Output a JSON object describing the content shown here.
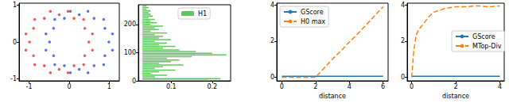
{
  "chart_data": [
    {
      "type": "scatter",
      "series": [
        {
          "color": "#e8312f",
          "values": [
            [
              0.49,
              0
            ],
            [
              0.58,
              0.22
            ],
            [
              0.39,
              0.37
            ],
            [
              0.36,
              0.61
            ],
            [
              0.12,
              0.64
            ],
            [
              -0.03,
              0.83
            ],
            [
              -0.25,
              0.74
            ],
            [
              -0.47,
              0.83
            ],
            [
              -0.62,
              0.64
            ],
            [
              -0.86,
              0.61
            ],
            [
              -0.89,
              0.37
            ],
            [
              -1.08,
              0.22
            ],
            [
              -0.99,
              0
            ],
            [
              -1.08,
              -0.22
            ],
            [
              -0.89,
              -0.37
            ],
            [
              -0.86,
              -0.61
            ],
            [
              -0.62,
              -0.64
            ],
            [
              -0.47,
              -0.83
            ],
            [
              -0.25,
              -0.74
            ],
            [
              -0.03,
              -0.83
            ],
            [
              0.12,
              -0.64
            ],
            [
              0.36,
              -0.61
            ],
            [
              0.39,
              -0.37
            ],
            [
              0.58,
              -0.22
            ]
          ]
        },
        {
          "color": "#2f4fe0",
          "values": [
            [
              -0.49,
              0
            ],
            [
              -0.58,
              0.22
            ],
            [
              -0.39,
              0.37
            ],
            [
              -0.36,
              0.61
            ],
            [
              -0.12,
              0.64
            ],
            [
              0.03,
              0.83
            ],
            [
              0.25,
              0.74
            ],
            [
              0.47,
              0.83
            ],
            [
              0.62,
              0.64
            ],
            [
              0.86,
              0.61
            ],
            [
              0.89,
              0.37
            ],
            [
              1.08,
              0.22
            ],
            [
              0.99,
              0
            ],
            [
              1.08,
              -0.22
            ],
            [
              0.89,
              -0.37
            ],
            [
              0.86,
              -0.61
            ],
            [
              0.62,
              -0.64
            ],
            [
              0.47,
              -0.83
            ],
            [
              0.25,
              -0.74
            ],
            [
              0.03,
              -0.83
            ],
            [
              -0.12,
              -0.64
            ],
            [
              -0.36,
              -0.61
            ],
            [
              -0.39,
              -0.37
            ],
            [
              -0.58,
              -0.22
            ]
          ]
        }
      ],
      "marker": "circle",
      "xlim": [
        -1.25,
        1.25
      ],
      "xticks": [
        -1,
        0,
        1
      ],
      "ylim": [
        -1.05,
        1.05
      ],
      "yticks": [
        -1,
        0,
        1
      ]
    },
    {
      "type": "barcode",
      "series": [
        {
          "name": "H1",
          "color": "#5cc85c",
          "y": [
            2,
            8,
            14,
            20,
            26,
            32,
            38,
            44,
            50,
            56,
            62,
            68,
            74,
            80,
            86,
            92,
            98,
            104,
            110,
            116,
            122,
            128,
            134,
            140,
            146,
            152,
            158,
            164,
            170,
            176,
            182,
            188,
            194,
            200,
            206,
            212,
            218,
            224,
            230,
            236,
            242,
            248,
            254,
            260,
            266
          ],
          "values": [
            [
              0.03,
              0.19
            ],
            [
              0.03,
              0.22
            ],
            [
              0.03,
              0.06
            ],
            [
              0.03,
              0.09
            ],
            [
              0.03,
              0.05
            ],
            [
              0.03,
              0.07
            ],
            [
              0.03,
              0.11
            ],
            [
              0.03,
              0.06
            ],
            [
              0.03,
              0.08
            ],
            [
              0.03,
              0.13
            ],
            [
              0.03,
              0.07
            ],
            [
              0.03,
              0.1
            ],
            [
              0.03,
              0.12
            ],
            [
              0.03,
              0.09
            ],
            [
              0.03,
              0.15
            ],
            [
              0.03,
              0.235
            ],
            [
              0.03,
              0.2
            ],
            [
              0.03,
              0.16
            ],
            [
              0.03,
              0.12
            ],
            [
              0.03,
              0.08
            ],
            [
              0.03,
              0.11
            ],
            [
              0.03,
              0.07
            ],
            [
              0.03,
              0.09
            ],
            [
              0.03,
              0.06
            ],
            [
              0.03,
              0.1
            ],
            [
              0.03,
              0.07
            ],
            [
              0.03,
              0.08
            ],
            [
              0.03,
              0.06
            ],
            [
              0.03,
              0.09
            ],
            [
              0.03,
              0.05
            ],
            [
              0.03,
              0.07
            ],
            [
              0.03,
              0.06
            ],
            [
              0.03,
              0.08
            ],
            [
              0.03,
              0.05
            ],
            [
              0.03,
              0.065
            ],
            [
              0.03,
              0.05
            ],
            [
              0.03,
              0.06
            ],
            [
              0.03,
              0.045
            ],
            [
              0.03,
              0.055
            ],
            [
              0.03,
              0.05
            ],
            [
              0.03,
              0.045
            ],
            [
              0.03,
              0.05
            ],
            [
              0.03,
              0.04
            ],
            [
              0.03,
              0.045
            ],
            [
              0.03,
              0.04
            ]
          ]
        }
      ],
      "legend": "upper right",
      "xlim": [
        0.02,
        0.245
      ],
      "xticks": [
        0.1,
        0.2
      ],
      "ylim": [
        0,
        270
      ],
      "yticks": [
        0,
        100,
        200
      ]
    },
    {
      "type": "line",
      "x": [
        0,
        0.5,
        1,
        1.5,
        2,
        2.5,
        3,
        3.5,
        4,
        4.5,
        5,
        5.5,
        6
      ],
      "series": [
        {
          "name": "GScore",
          "color": "#1f77b4",
          "line_style": "solid",
          "values": [
            0.05,
            0.05,
            0.05,
            0.05,
            0.05,
            0.05,
            0.05,
            0.05,
            0.05,
            0.05,
            0.05,
            0.05,
            0.05
          ]
        },
        {
          "name": "H0 max",
          "color": "#ff7f0e",
          "line_style": "dashed",
          "values": [
            0,
            0,
            0,
            0,
            0,
            0.5,
            1.0,
            1.45,
            1.95,
            2.4,
            2.9,
            3.4,
            3.9
          ]
        }
      ],
      "xlabel": "distance",
      "legend": "upper left",
      "xlim": [
        -0.3,
        6.3
      ],
      "xticks": [
        0,
        2,
        4,
        6
      ],
      "ylim": [
        -0.2,
        4.1
      ],
      "yticks": [
        0,
        2,
        4
      ]
    },
    {
      "type": "line",
      "x": [
        0,
        0.1,
        0.2,
        0.3,
        0.5,
        0.75,
        1,
        1.5,
        2,
        2.5,
        3,
        3.5,
        4
      ],
      "series": [
        {
          "name": "GScore",
          "color": "#1f77b4",
          "line_style": "solid",
          "values": [
            0.05,
            0.05,
            0.05,
            0.05,
            0.05,
            0.05,
            0.05,
            0.05,
            0.05,
            0.05,
            0.05,
            0.05,
            0.05
          ]
        },
        {
          "name": "MTop-Div",
          "color": "#ff7f0e",
          "line_style": "dashed",
          "values": [
            0,
            1.5,
            2.3,
            2.6,
            2.9,
            3.3,
            3.6,
            3.8,
            3.9,
            3.9,
            3.95,
            3.9,
            3.95
          ]
        }
      ],
      "xlabel": "distance",
      "legend": "center right",
      "xlim": [
        -0.2,
        4.2
      ],
      "xticks": [
        0,
        2,
        4
      ],
      "ylim": [
        -0.2,
        4.1
      ],
      "yticks": [
        0,
        2,
        4
      ]
    }
  ]
}
